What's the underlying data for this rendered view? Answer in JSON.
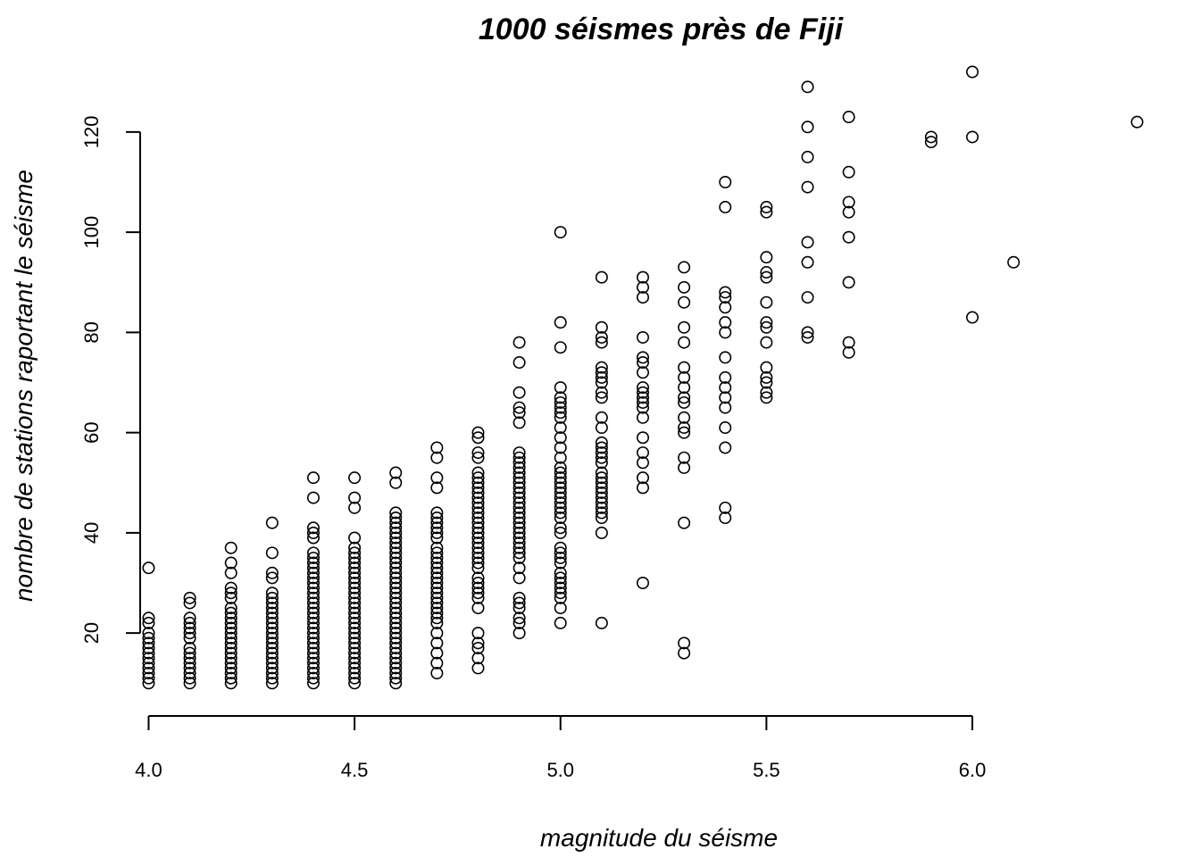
{
  "chart_data": {
    "type": "scatter",
    "title": "1000 séismes près de Fiji",
    "xlabel": "magnitude du séisme",
    "ylabel": "nombre de stations raportant le séisme",
    "xlim": [
      3.96,
      6.44
    ],
    "ylim": [
      4.7,
      135.3
    ],
    "x_ticks": [
      4.0,
      4.5,
      5.0,
      5.5,
      6.0
    ],
    "x_tick_labels": [
      "4.0",
      "4.5",
      "5.0",
      "5.5",
      "6.0"
    ],
    "y_ticks": [
      20,
      40,
      60,
      80,
      100,
      120
    ],
    "y_tick_labels": [
      "20",
      "40",
      "60",
      "80",
      "100",
      "120"
    ],
    "grid": false,
    "legend": "none",
    "marker": "open-circle",
    "points_by_magnitude": [
      {
        "mag": 4.0,
        "stations": [
          10,
          11,
          12,
          13,
          14,
          15,
          16,
          17,
          18,
          19,
          20,
          22,
          23,
          33
        ]
      },
      {
        "mag": 4.1,
        "stations": [
          10,
          11,
          12,
          13,
          14,
          15,
          16,
          17,
          19,
          20,
          21,
          22,
          23,
          26,
          27
        ]
      },
      {
        "mag": 4.2,
        "stations": [
          10,
          11,
          12,
          13,
          14,
          15,
          16,
          17,
          18,
          19,
          20,
          21,
          22,
          23,
          24,
          25,
          27,
          28,
          29,
          32,
          34,
          37
        ]
      },
      {
        "mag": 4.3,
        "stations": [
          10,
          11,
          12,
          13,
          14,
          15,
          16,
          17,
          18,
          19,
          20,
          21,
          22,
          23,
          24,
          25,
          26,
          27,
          28,
          31,
          32,
          36,
          42
        ]
      },
      {
        "mag": 4.4,
        "stations": [
          10,
          11,
          12,
          13,
          14,
          15,
          16,
          17,
          18,
          19,
          20,
          21,
          22,
          23,
          24,
          25,
          26,
          27,
          28,
          29,
          30,
          31,
          32,
          33,
          34,
          35,
          36,
          39,
          40,
          41,
          47,
          51
        ]
      },
      {
        "mag": 4.5,
        "stations": [
          10,
          11,
          12,
          13,
          14,
          15,
          16,
          17,
          18,
          19,
          20,
          21,
          22,
          23,
          24,
          25,
          26,
          27,
          28,
          29,
          30,
          31,
          32,
          33,
          34,
          35,
          36,
          37,
          39,
          45,
          47,
          51
        ]
      },
      {
        "mag": 4.6,
        "stations": [
          10,
          11,
          12,
          13,
          14,
          15,
          16,
          17,
          18,
          19,
          20,
          21,
          22,
          23,
          24,
          25,
          26,
          27,
          28,
          29,
          30,
          31,
          32,
          33,
          34,
          35,
          36,
          37,
          38,
          39,
          40,
          41,
          42,
          43,
          44,
          50,
          52
        ]
      },
      {
        "mag": 4.7,
        "stations": [
          12,
          14,
          16,
          18,
          20,
          22,
          23,
          24,
          25,
          26,
          27,
          28,
          29,
          30,
          31,
          32,
          33,
          34,
          35,
          36,
          37,
          39,
          40,
          41,
          42,
          43,
          44,
          49,
          51,
          55,
          57
        ]
      },
      {
        "mag": 4.8,
        "stations": [
          13,
          15,
          17,
          18,
          20,
          25,
          27,
          28,
          29,
          30,
          31,
          33,
          34,
          35,
          36,
          37,
          38,
          39,
          40,
          41,
          42,
          43,
          44,
          45,
          46,
          47,
          48,
          49,
          50,
          51,
          52,
          55,
          56,
          59,
          60
        ]
      },
      {
        "mag": 4.9,
        "stations": [
          20,
          22,
          23,
          25,
          26,
          27,
          31,
          33,
          35,
          36,
          37,
          38,
          39,
          40,
          41,
          42,
          43,
          44,
          45,
          46,
          47,
          48,
          49,
          50,
          51,
          52,
          53,
          54,
          55,
          56,
          62,
          64,
          65,
          68,
          74,
          78
        ]
      },
      {
        "mag": 5.0,
        "stations": [
          22,
          25,
          27,
          28,
          29,
          30,
          31,
          32,
          34,
          35,
          36,
          37,
          40,
          41,
          43,
          44,
          45,
          46,
          47,
          48,
          49,
          50,
          51,
          52,
          53,
          55,
          57,
          59,
          61,
          63,
          64,
          65,
          66,
          67,
          69,
          77,
          82,
          100
        ]
      },
      {
        "mag": 5.1,
        "stations": [
          22,
          40,
          43,
          44,
          45,
          46,
          47,
          48,
          49,
          50,
          51,
          52,
          54,
          55,
          56,
          57,
          58,
          61,
          63,
          67,
          68,
          70,
          71,
          72,
          73,
          78,
          79,
          81,
          91
        ]
      },
      {
        "mag": 5.2,
        "stations": [
          30,
          49,
          51,
          54,
          56,
          59,
          63,
          65,
          66,
          67,
          68,
          69,
          72,
          74,
          75,
          79,
          87,
          89,
          91
        ]
      },
      {
        "mag": 5.3,
        "stations": [
          16,
          18,
          42,
          53,
          55,
          60,
          61,
          63,
          66,
          67,
          69,
          71,
          73,
          78,
          81,
          86,
          89,
          93
        ]
      },
      {
        "mag": 5.4,
        "stations": [
          43,
          45,
          57,
          61,
          65,
          67,
          69,
          71,
          75,
          80,
          82,
          85,
          87,
          88,
          105,
          110
        ]
      },
      {
        "mag": 5.5,
        "stations": [
          67,
          68,
          70,
          71,
          73,
          78,
          81,
          82,
          86,
          91,
          92,
          95,
          104,
          105
        ]
      },
      {
        "mag": 5.6,
        "stations": [
          79,
          80,
          87,
          94,
          98,
          109,
          115,
          121,
          129
        ]
      },
      {
        "mag": 5.7,
        "stations": [
          76,
          78,
          90,
          99,
          104,
          106,
          112,
          123
        ]
      },
      {
        "mag": 5.9,
        "stations": [
          118,
          119
        ]
      },
      {
        "mag": 6.0,
        "stations": [
          83,
          119,
          132
        ]
      },
      {
        "mag": 6.1,
        "stations": [
          94
        ]
      },
      {
        "mag": 6.4,
        "stations": [
          122
        ]
      }
    ]
  }
}
